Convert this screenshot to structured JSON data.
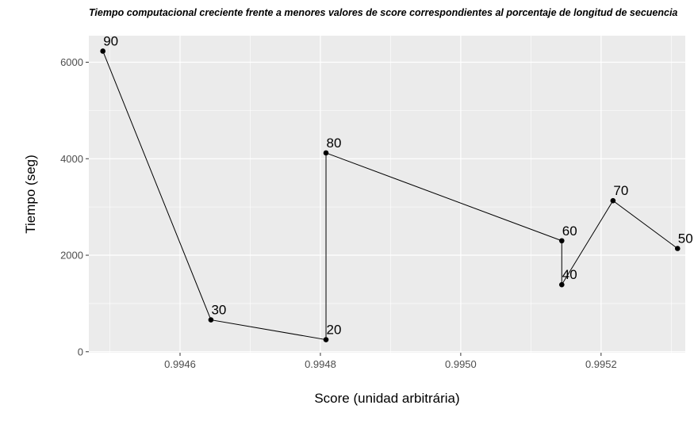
{
  "chart_data": {
    "type": "line",
    "title": "Tiempo computacional creciente frente a menores valores de score correspondientes al porcentaje de longitud de secuencia",
    "xlabel": "Score (unidad arbitrária)",
    "ylabel": "Tiempo (seg)",
    "xlim": [
      0.99447,
      0.99532
    ],
    "ylim": [
      -20,
      6550
    ],
    "x_ticks": [
      0.9946,
      0.9948,
      0.995,
      0.9952
    ],
    "x_tick_labels": [
      "0.9946",
      "0.9948",
      "0.9950",
      "0.9952"
    ],
    "y_ticks": [
      0,
      2000,
      4000,
      6000
    ],
    "y_tick_labels": [
      "0",
      "2000",
      "4000",
      "6000"
    ],
    "grid": true,
    "points": [
      {
        "label": "90",
        "x": 0.99449,
        "y": 6230
      },
      {
        "label": "30",
        "x": 0.994644,
        "y": 660
      },
      {
        "label": "20",
        "x": 0.994808,
        "y": 250
      },
      {
        "label": "80",
        "x": 0.994808,
        "y": 4120
      },
      {
        "label": "60",
        "x": 0.995144,
        "y": 2300
      },
      {
        "label": "40",
        "x": 0.995144,
        "y": 1390
      },
      {
        "label": "70",
        "x": 0.995217,
        "y": 3130
      },
      {
        "label": "50",
        "x": 0.995309,
        "y": 2140
      }
    ],
    "colors": {
      "panel": "#ebebeb",
      "grid": "#ffffff",
      "line": "#000000",
      "tick_text": "#4d4d4d"
    }
  }
}
